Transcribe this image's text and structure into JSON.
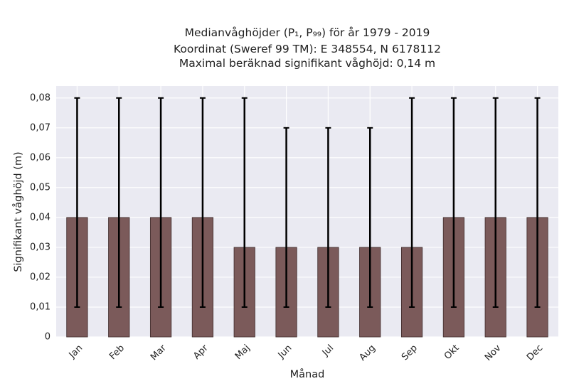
{
  "chart_data": {
    "type": "bar",
    "title_lines": [
      "Medianvåghöjder (P₁, P₉₉) för år 1979 - 2019",
      "Koordinat (Sweref 99 TM): E 348554, N 6178112",
      "Maximal beräknad signifikant våghöjd: 0,14 m"
    ],
    "xlabel": "Månad",
    "ylabel": "Signifikant våghöjd (m)",
    "categories": [
      "Jan",
      "Feb",
      "Mar",
      "Apr",
      "Maj",
      "Jun",
      "Jul",
      "Aug",
      "Sep",
      "Okt",
      "Nov",
      "Dec"
    ],
    "values": [
      0.04,
      0.04,
      0.04,
      0.04,
      0.03,
      0.03,
      0.03,
      0.03,
      0.03,
      0.04,
      0.04,
      0.04
    ],
    "p1": [
      0.01,
      0.01,
      0.01,
      0.01,
      0.01,
      0.01,
      0.01,
      0.01,
      0.01,
      0.01,
      0.01,
      0.01
    ],
    "p99": [
      0.08,
      0.08,
      0.08,
      0.08,
      0.08,
      0.07,
      0.07,
      0.07,
      0.08,
      0.08,
      0.08,
      0.08
    ],
    "ylim": [
      0,
      0.08
    ],
    "yticks": [
      0,
      0.01,
      0.02,
      0.03,
      0.04,
      0.05,
      0.06,
      0.07,
      0.08
    ],
    "ytick_labels": [
      "0",
      "0,01",
      "0,02",
      "0,03",
      "0,04",
      "0,05",
      "0,06",
      "0,07",
      "0,08"
    ],
    "grid": true,
    "colors": {
      "bar": "#7b5a5a",
      "bar_edge": "#3d2a2a",
      "errorbar": "#000000",
      "plot_background": "#eaeaf2",
      "grid": "#ffffff"
    }
  }
}
